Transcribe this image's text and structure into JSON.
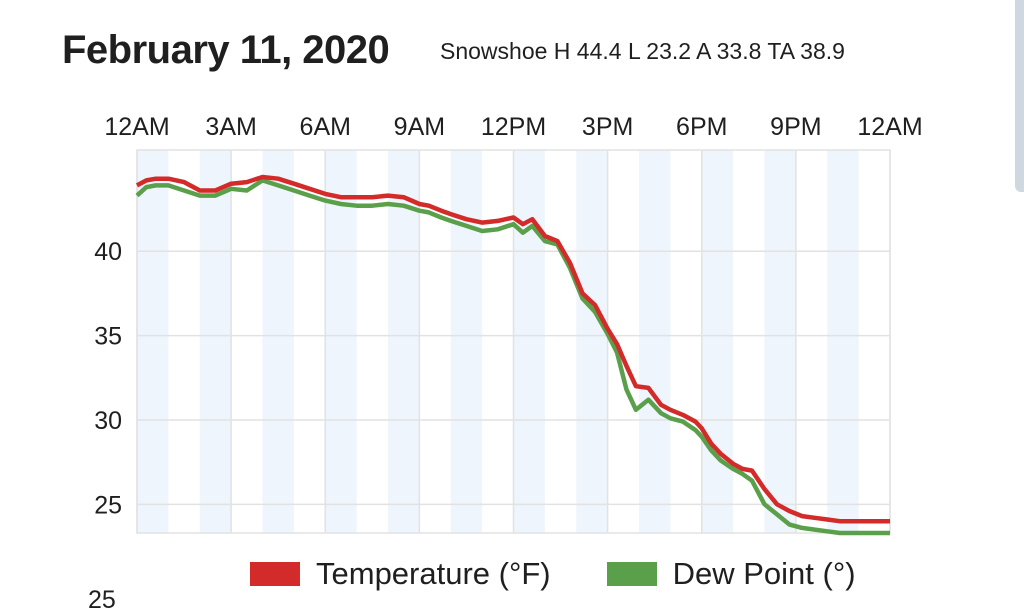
{
  "header": {
    "date": "February 11, 2020",
    "summary": "Snowshoe H 44.4 L 23.2 A 33.8 TA 38.9"
  },
  "colors": {
    "temperature": "#d32a2a",
    "dew_point": "#5aa04a",
    "band": "#eef5fc",
    "grid": "#e2e2e2"
  },
  "partial_label": "25",
  "chart_data": {
    "type": "line",
    "x_tick_labels": [
      "12AM",
      "3AM",
      "6AM",
      "9AM",
      "12PM",
      "3PM",
      "6PM",
      "9PM",
      "12AM"
    ],
    "x_unit": "hours since midnight",
    "xlim": [
      0,
      24
    ],
    "ylim": [
      23.3,
      46.0
    ],
    "y_ticks": [
      40,
      35,
      30,
      25
    ],
    "grid": true,
    "legend_position": "bottom",
    "x": [
      0,
      0.3,
      0.6,
      1,
      1.5,
      2,
      2.5,
      3,
      3.5,
      4,
      4.5,
      5,
      5.5,
      6,
      6.5,
      7,
      7.5,
      8,
      8.5,
      9,
      9.3,
      9.7,
      10,
      10.5,
      11,
      11.5,
      12,
      12.3,
      12.6,
      13,
      13.4,
      13.8,
      14.2,
      14.6,
      15,
      15.3,
      15.6,
      15.9,
      16.3,
      16.7,
      17,
      17.4,
      17.8,
      18,
      18.3,
      18.6,
      19,
      19.3,
      19.6,
      20,
      20.4,
      20.8,
      21.2,
      21.6,
      22,
      22.4,
      22.8,
      23,
      23.4,
      23.7,
      24
    ],
    "series": [
      {
        "name": "Temperature (°F)",
        "values": [
          43.9,
          44.2,
          44.3,
          44.3,
          44.1,
          43.6,
          43.6,
          44.0,
          44.1,
          44.4,
          44.3,
          44.0,
          43.7,
          43.4,
          43.2,
          43.2,
          43.2,
          43.3,
          43.2,
          42.8,
          42.7,
          42.4,
          42.2,
          41.9,
          41.7,
          41.8,
          42.0,
          41.6,
          41.9,
          40.9,
          40.6,
          39.3,
          37.5,
          36.8,
          35.4,
          34.5,
          33.2,
          32.0,
          31.9,
          30.9,
          30.6,
          30.3,
          29.9,
          29.5,
          28.6,
          28.0,
          27.4,
          27.1,
          27.0,
          25.9,
          25.0,
          24.6,
          24.3,
          24.2,
          24.1,
          24.0,
          24.0,
          24.0,
          24.0,
          24.0,
          24.0
        ]
      },
      {
        "name": "Dew Point (°)",
        "values": [
          43.3,
          43.8,
          43.9,
          43.9,
          43.6,
          43.3,
          43.3,
          43.7,
          43.6,
          44.2,
          43.9,
          43.6,
          43.3,
          43.0,
          42.8,
          42.7,
          42.7,
          42.8,
          42.7,
          42.4,
          42.3,
          42.0,
          41.8,
          41.5,
          41.2,
          41.3,
          41.6,
          41.1,
          41.5,
          40.6,
          40.4,
          39.0,
          37.2,
          36.4,
          35.1,
          34.0,
          31.8,
          30.6,
          31.2,
          30.4,
          30.1,
          29.9,
          29.4,
          29.0,
          28.2,
          27.6,
          27.1,
          26.8,
          26.4,
          25.0,
          24.4,
          23.8,
          23.6,
          23.5,
          23.4,
          23.3,
          23.3,
          23.3,
          23.3,
          23.3,
          23.3
        ]
      }
    ]
  }
}
